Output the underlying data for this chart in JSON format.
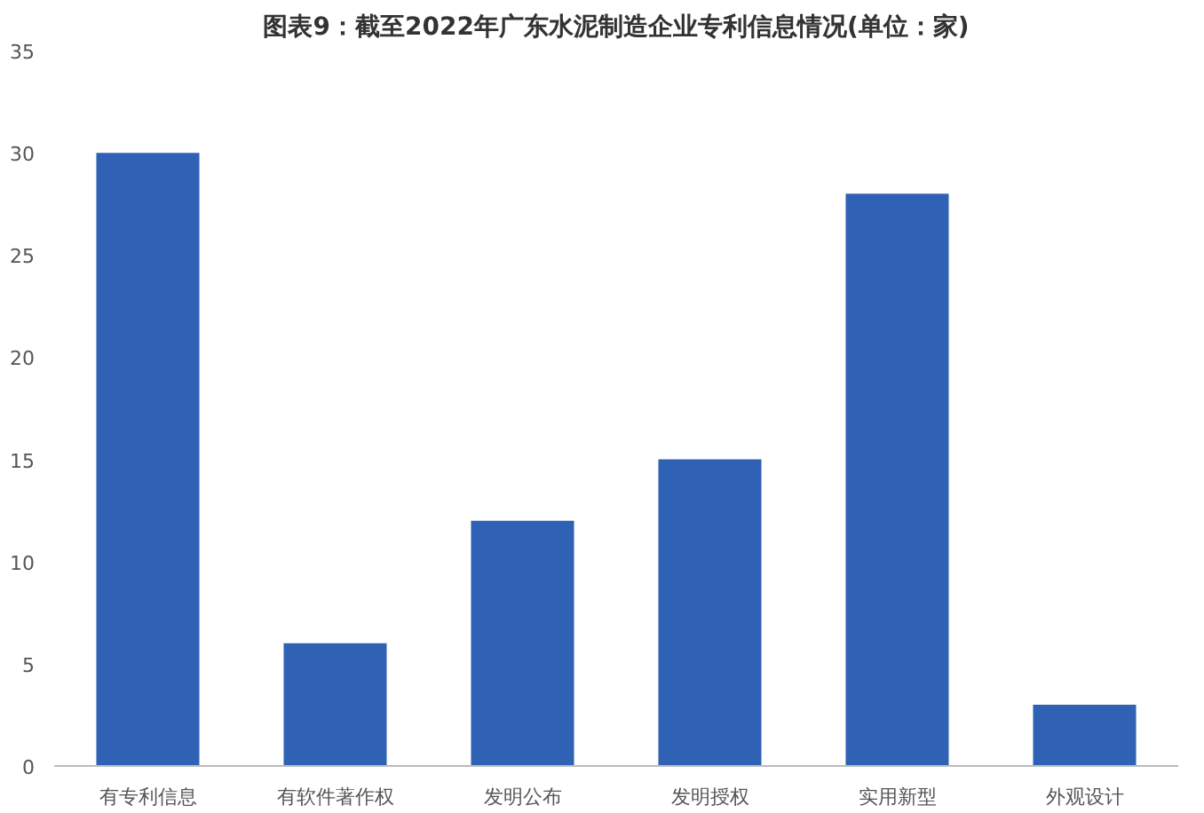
{
  "chart_data": {
    "type": "bar",
    "title": "图表9：截至2022年广东水泥制造企业专利信息情况(单位：家)",
    "categories": [
      "有专利信息",
      "有软件著作权",
      "发明公布",
      "发明授权",
      "实用新型",
      "外观设计"
    ],
    "values": [
      30,
      6,
      12,
      15,
      28,
      3
    ],
    "color": "#2f62b4",
    "ylim": [
      0,
      35
    ],
    "yticks": [
      0,
      5,
      10,
      15,
      20,
      25,
      30,
      35
    ],
    "grid": false
  }
}
